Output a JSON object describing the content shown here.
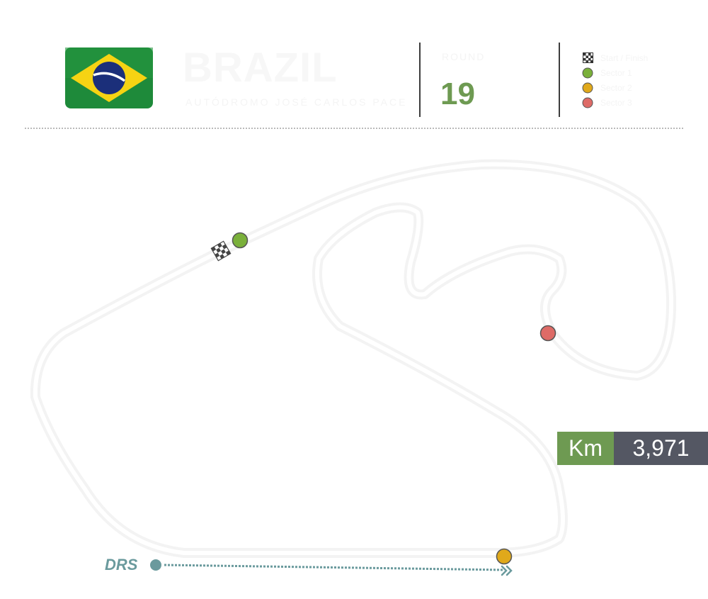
{
  "header": {
    "country": "BRAZIL",
    "subtitle": "AUTÓDROMO JOSÉ CARLOS PACE",
    "round_label": "ROUND",
    "round_number": "19",
    "legend": [
      {
        "icon": "checkered-flag-icon",
        "label": "Start / Finish"
      },
      {
        "icon": "green-dot-icon",
        "label": "Sector 1",
        "color": "#7ab03a"
      },
      {
        "icon": "yellow-dot-icon",
        "label": "Sector 2",
        "color": "#e0a91b"
      },
      {
        "icon": "red-dot-icon",
        "label": "Sector 3",
        "color": "#de6b67"
      }
    ]
  },
  "stats": {
    "length_unit": "Km",
    "length_value": "3,971"
  },
  "drs": {
    "label": "DRS"
  },
  "colors": {
    "accent_green": "#6e9a52",
    "stat_dark": "#545763",
    "drs_teal": "#6a9a9d",
    "sector1": "#7ab03a",
    "sector2": "#e0a91b",
    "sector3": "#de6b67"
  }
}
